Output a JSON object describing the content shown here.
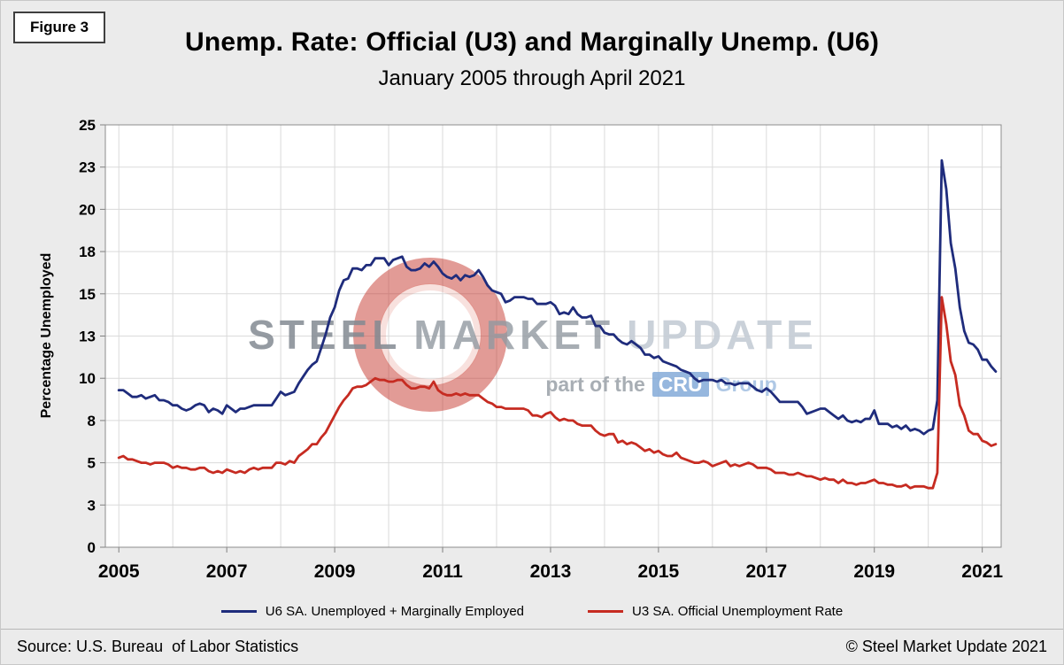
{
  "figure_label": "Figure 3",
  "source": "Source: U.S. Bureau  of Labor Statistics",
  "copyright": "© Steel Market Update 2021",
  "watermark": {
    "word1": "STEEL",
    "word2": "MARKET",
    "word3": "UPDATE",
    "tagline_prefix": "part of the",
    "tagline_box": "CRU",
    "tagline_suffix": "Group"
  },
  "chart_data": {
    "type": "line",
    "title": "Unemp. Rate: Official (U3) and Marginally Unemp. (U6)",
    "subtitle": "January 2005 through April 2021",
    "xlabel": "",
    "ylabel": "Percentage Unemployed",
    "ylim": [
      0,
      25
    ],
    "grid": true,
    "legend_position": "bottom",
    "frequency": "monthly",
    "x_start": "2005-01",
    "x_end": "2021-04",
    "x_ticks": [
      2005,
      2007,
      2009,
      2011,
      2013,
      2015,
      2017,
      2019,
      2021
    ],
    "y_tick_values": [
      0,
      2.5,
      5,
      7.5,
      10,
      12.5,
      15,
      17.5,
      20,
      22.5,
      25
    ],
    "y_tick_labels": [
      "0",
      "3",
      "5",
      "8",
      "10",
      "13",
      "15",
      "18",
      "20",
      "23",
      "25"
    ],
    "series": [
      {
        "name": "U6 SA. Unemployed + Marginally Employed",
        "color": "#1F2C7C",
        "values": [
          9.3,
          9.3,
          9.1,
          8.9,
          8.9,
          9.0,
          8.8,
          8.9,
          9.0,
          8.7,
          8.7,
          8.6,
          8.4,
          8.4,
          8.2,
          8.1,
          8.2,
          8.4,
          8.5,
          8.4,
          8.0,
          8.2,
          8.1,
          7.9,
          8.4,
          8.2,
          8.0,
          8.2,
          8.2,
          8.3,
          8.4,
          8.4,
          8.4,
          8.4,
          8.4,
          8.8,
          9.2,
          9.0,
          9.1,
          9.2,
          9.7,
          10.1,
          10.5,
          10.8,
          11.0,
          11.8,
          12.6,
          13.6,
          14.2,
          15.2,
          15.8,
          15.9,
          16.5,
          16.5,
          16.4,
          16.7,
          16.7,
          17.1,
          17.1,
          17.1,
          16.7,
          17.0,
          17.1,
          17.2,
          16.6,
          16.4,
          16.4,
          16.5,
          16.8,
          16.6,
          16.9,
          16.6,
          16.2,
          16.0,
          15.9,
          16.1,
          15.8,
          16.1,
          16.0,
          16.1,
          16.4,
          16.0,
          15.5,
          15.2,
          15.1,
          15.0,
          14.5,
          14.6,
          14.8,
          14.8,
          14.8,
          14.7,
          14.7,
          14.4,
          14.4,
          14.4,
          14.5,
          14.3,
          13.8,
          13.9,
          13.8,
          14.2,
          13.8,
          13.6,
          13.6,
          13.7,
          13.1,
          13.1,
          12.7,
          12.6,
          12.6,
          12.3,
          12.1,
          12.0,
          12.2,
          12.0,
          11.8,
          11.4,
          11.4,
          11.2,
          11.3,
          11.0,
          10.9,
          10.8,
          10.7,
          10.5,
          10.4,
          10.3,
          10.0,
          9.8,
          9.9,
          9.9,
          9.9,
          9.8,
          9.9,
          9.7,
          9.7,
          9.6,
          9.7,
          9.7,
          9.7,
          9.5,
          9.3,
          9.2,
          9.4,
          9.2,
          8.9,
          8.6,
          8.6,
          8.6,
          8.6,
          8.6,
          8.3,
          7.9,
          8.0,
          8.1,
          8.2,
          8.2,
          8.0,
          7.8,
          7.6,
          7.8,
          7.5,
          7.4,
          7.5,
          7.4,
          7.6,
          7.6,
          8.1,
          7.3,
          7.3,
          7.3,
          7.1,
          7.2,
          7.0,
          7.2,
          6.9,
          7.0,
          6.9,
          6.7,
          6.9,
          7.0,
          8.7,
          22.9,
          21.2,
          18.0,
          16.5,
          14.2,
          12.8,
          12.1,
          12.0,
          11.7,
          11.1,
          11.1,
          10.7,
          10.4
        ]
      },
      {
        "name": "U3 SA. Official Unemployment Rate",
        "color": "#C62B21",
        "values": [
          5.3,
          5.4,
          5.2,
          5.2,
          5.1,
          5.0,
          5.0,
          4.9,
          5.0,
          5.0,
          5.0,
          4.9,
          4.7,
          4.8,
          4.7,
          4.7,
          4.6,
          4.6,
          4.7,
          4.7,
          4.5,
          4.4,
          4.5,
          4.4,
          4.6,
          4.5,
          4.4,
          4.5,
          4.4,
          4.6,
          4.7,
          4.6,
          4.7,
          4.7,
          4.7,
          5.0,
          5.0,
          4.9,
          5.1,
          5.0,
          5.4,
          5.6,
          5.8,
          6.1,
          6.1,
          6.5,
          6.8,
          7.3,
          7.8,
          8.3,
          8.7,
          9.0,
          9.4,
          9.5,
          9.5,
          9.6,
          9.8,
          10.0,
          9.9,
          9.9,
          9.8,
          9.8,
          9.9,
          9.9,
          9.6,
          9.4,
          9.4,
          9.5,
          9.5,
          9.4,
          9.8,
          9.3,
          9.1,
          9.0,
          9.0,
          9.1,
          9.0,
          9.1,
          9.0,
          9.0,
          9.0,
          8.8,
          8.6,
          8.5,
          8.3,
          8.3,
          8.2,
          8.2,
          8.2,
          8.2,
          8.2,
          8.1,
          7.8,
          7.8,
          7.7,
          7.9,
          8.0,
          7.7,
          7.5,
          7.6,
          7.5,
          7.5,
          7.3,
          7.2,
          7.2,
          7.2,
          6.9,
          6.7,
          6.6,
          6.7,
          6.7,
          6.2,
          6.3,
          6.1,
          6.2,
          6.1,
          5.9,
          5.7,
          5.8,
          5.6,
          5.7,
          5.5,
          5.4,
          5.4,
          5.6,
          5.3,
          5.2,
          5.1,
          5.0,
          5.0,
          5.1,
          5.0,
          4.8,
          4.9,
          5.0,
          5.1,
          4.8,
          4.9,
          4.8,
          4.9,
          5.0,
          4.9,
          4.7,
          4.7,
          4.7,
          4.6,
          4.4,
          4.4,
          4.4,
          4.3,
          4.3,
          4.4,
          4.3,
          4.2,
          4.2,
          4.1,
          4.0,
          4.1,
          4.0,
          4.0,
          3.8,
          4.0,
          3.8,
          3.8,
          3.7,
          3.8,
          3.8,
          3.9,
          4.0,
          3.8,
          3.8,
          3.7,
          3.7,
          3.6,
          3.6,
          3.7,
          3.5,
          3.6,
          3.6,
          3.6,
          3.5,
          3.5,
          4.4,
          14.8,
          13.2,
          11.0,
          10.2,
          8.4,
          7.8,
          6.9,
          6.7,
          6.7,
          6.3,
          6.2,
          6.0,
          6.1
        ]
      }
    ]
  }
}
